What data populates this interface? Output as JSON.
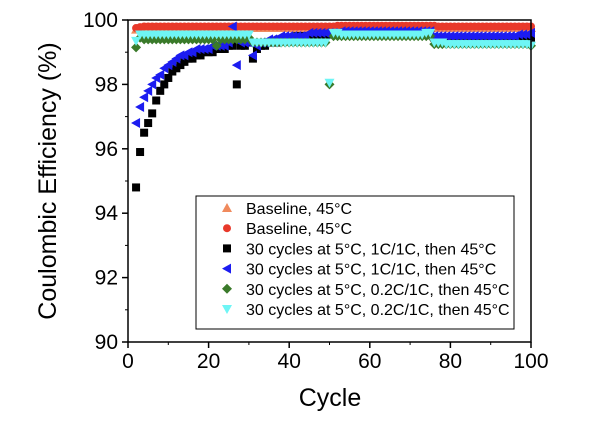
{
  "chart_data": {
    "type": "scatter",
    "xlabel": "Cycle",
    "ylabel": "Coulombic Efficiency (%)",
    "xlim": [
      0,
      100
    ],
    "ylim": [
      90,
      100
    ],
    "xticks": [
      "0",
      "20",
      "40",
      "60",
      "80",
      "100"
    ],
    "yticks": [
      "90",
      "92",
      "94",
      "96",
      "98",
      "100"
    ],
    "grid": false,
    "legend_position": "bottom-right",
    "series": [
      {
        "name": "Baseline, 45°C",
        "marker": "triangle-up",
        "color": "#f08a5d",
        "x_range": [
          2,
          100
        ],
        "y": [
          99.7,
          99.72,
          99.74,
          99.74,
          99.75,
          99.75,
          99.75,
          99.75,
          99.75,
          99.75,
          99.75,
          99.75,
          99.75,
          99.75,
          99.75,
          99.75,
          99.75,
          99.75,
          99.75,
          99.75,
          99.75,
          99.75,
          99.75,
          99.75,
          99.75,
          99.75,
          99.75,
          99.75,
          99.75,
          99.75,
          99.75,
          99.75,
          99.75,
          99.75,
          99.75,
          99.75,
          99.75,
          99.75,
          99.75,
          99.75,
          99.75,
          99.75,
          99.75,
          99.75,
          99.75,
          99.75,
          99.75,
          99.75,
          99.75,
          99.75,
          99.75,
          99.75,
          99.75,
          99.75,
          99.75,
          99.75,
          99.75,
          99.75,
          99.75,
          99.75,
          99.75,
          99.75,
          99.75,
          99.75,
          99.75,
          99.75,
          99.75,
          99.75,
          99.75,
          99.75,
          99.75,
          99.75,
          99.75,
          99.75,
          99.75,
          99.75,
          99.75,
          99.75,
          99.75,
          99.75,
          99.75,
          99.75,
          99.75,
          99.75,
          99.75,
          99.75,
          99.75,
          99.75,
          99.75,
          99.75,
          99.75,
          99.75,
          99.75,
          99.75,
          99.75,
          99.75,
          99.75,
          99.75,
          99.75
        ]
      },
      {
        "name": "Baseline, 45°C",
        "marker": "circle",
        "color": "#e8392a",
        "x_range": [
          2,
          100
        ],
        "y": [
          99.75,
          99.78,
          99.8,
          99.8,
          99.8,
          99.8,
          99.8,
          99.8,
          99.8,
          99.8,
          99.8,
          99.8,
          99.8,
          99.8,
          99.8,
          99.8,
          99.8,
          99.8,
          99.8,
          99.8,
          99.8,
          99.8,
          99.8,
          99.8,
          99.8,
          99.8,
          99.8,
          99.8,
          99.8,
          99.8,
          99.8,
          99.8,
          99.8,
          99.8,
          99.8,
          99.8,
          99.8,
          99.8,
          99.8,
          99.8,
          99.8,
          99.8,
          99.8,
          99.8,
          99.8,
          99.8,
          99.8,
          99.8,
          99.8,
          99.8,
          99.82,
          99.82,
          99.82,
          99.82,
          99.82,
          99.82,
          99.82,
          99.82,
          99.82,
          99.82,
          99.82,
          99.82,
          99.82,
          99.82,
          99.82,
          99.82,
          99.82,
          99.82,
          99.82,
          99.82,
          99.82,
          99.82,
          99.82,
          99.82,
          99.82,
          99.8,
          99.8,
          99.8,
          99.8,
          99.8,
          99.8,
          99.8,
          99.8,
          99.8,
          99.8,
          99.8,
          99.8,
          99.8,
          99.8,
          99.8,
          99.8,
          99.8,
          99.8,
          99.8,
          99.8,
          99.8,
          99.8,
          99.8,
          99.8
        ]
      },
      {
        "name": "30 cycles at 5°C, 1C/1C, then 45°C",
        "marker": "square",
        "color": "#000000",
        "x_range": [
          2,
          100
        ],
        "y": [
          94.8,
          95.9,
          96.5,
          96.8,
          97.1,
          97.5,
          97.8,
          98.0,
          98.2,
          98.4,
          98.5,
          98.6,
          98.7,
          98.8,
          98.8,
          98.9,
          98.9,
          99.0,
          99.0,
          99.0,
          99.1,
          99.1,
          99.1,
          99.2,
          99.2,
          98.0,
          99.2,
          99.2,
          99.3,
          98.8,
          99.1,
          99.2,
          99.2,
          99.3,
          99.3,
          99.3,
          99.4,
          99.4,
          99.4,
          99.4,
          99.5,
          99.5,
          99.5,
          99.5,
          99.5,
          99.5,
          99.5,
          99.5,
          99.55,
          99.55,
          99.55,
          99.55,
          99.6,
          99.6,
          99.6,
          99.6,
          99.6,
          99.6,
          99.6,
          99.6,
          99.6,
          99.6,
          99.6,
          99.6,
          99.6,
          99.6,
          99.6,
          99.6,
          99.6,
          99.6,
          99.6,
          99.6,
          99.6,
          99.6,
          99.45,
          99.45,
          99.45,
          99.45,
          99.45,
          99.45,
          99.45,
          99.45,
          99.45,
          99.45,
          99.45,
          99.45,
          99.45,
          99.45,
          99.45,
          99.45,
          99.45,
          99.45,
          99.45,
          99.45,
          99.45,
          99.45,
          99.45,
          99.45,
          99.45
        ]
      },
      {
        "name": "30 cycles at 5°C, 1C/1C, then 45°C",
        "marker": "triangle-left",
        "color": "#1c1cf0",
        "x_range": [
          2,
          100
        ],
        "y": [
          96.8,
          97.3,
          97.6,
          97.8,
          98.0,
          98.2,
          98.3,
          98.5,
          98.6,
          98.7,
          98.8,
          98.9,
          98.9,
          99.0,
          99.0,
          99.1,
          99.1,
          99.1,
          99.1,
          99.2,
          99.2,
          99.2,
          99.2,
          99.3,
          99.8,
          98.6,
          99.3,
          99.3,
          99.3,
          98.9,
          99.2,
          99.3,
          99.3,
          99.4,
          99.4,
          99.4,
          99.5,
          99.5,
          99.5,
          99.5,
          99.5,
          99.5,
          99.5,
          99.6,
          99.6,
          99.6,
          99.6,
          99.6,
          99.6,
          99.6,
          99.6,
          99.65,
          99.65,
          99.65,
          99.65,
          99.65,
          99.65,
          99.65,
          99.65,
          99.65,
          99.65,
          99.65,
          99.65,
          99.65,
          99.65,
          99.65,
          99.65,
          99.65,
          99.65,
          99.65,
          99.65,
          99.65,
          99.65,
          99.65,
          99.5,
          99.5,
          99.5,
          99.5,
          99.5,
          99.5,
          99.5,
          99.5,
          99.5,
          99.5,
          99.5,
          99.5,
          99.5,
          99.5,
          99.5,
          99.5,
          99.5,
          99.5,
          99.5,
          99.5,
          99.5,
          99.55,
          99.55,
          99.55,
          99.6
        ]
      },
      {
        "name": "30 cycles at 5°C, 0.2C/1C, then 45°C",
        "marker": "diamond",
        "color": "#3a7a2a",
        "x_range": [
          2,
          100
        ],
        "y": [
          99.15,
          99.45,
          99.4,
          99.4,
          99.4,
          99.4,
          99.4,
          99.4,
          99.4,
          99.4,
          99.4,
          99.4,
          99.4,
          99.4,
          99.4,
          99.4,
          99.4,
          99.4,
          99.4,
          99.4,
          99.2,
          99.4,
          99.4,
          99.4,
          99.4,
          99.4,
          99.4,
          99.4,
          99.45,
          99.3,
          99.3,
          99.3,
          99.3,
          99.3,
          99.3,
          99.3,
          99.3,
          99.3,
          99.3,
          99.3,
          99.3,
          99.3,
          99.3,
          99.3,
          99.3,
          99.3,
          99.3,
          99.3,
          98.0,
          99.5,
          99.5,
          99.5,
          99.5,
          99.5,
          99.5,
          99.5,
          99.5,
          99.5,
          99.5,
          99.5,
          99.5,
          99.5,
          99.5,
          99.5,
          99.5,
          99.5,
          99.5,
          99.5,
          99.5,
          99.5,
          99.5,
          99.5,
          99.5,
          99.5,
          99.25,
          99.25,
          99.25,
          99.25,
          99.25,
          99.25,
          99.25,
          99.25,
          99.25,
          99.25,
          99.25,
          99.25,
          99.25,
          99.25,
          99.25,
          99.25,
          99.25,
          99.25,
          99.25,
          99.25,
          99.25,
          99.25,
          99.25,
          99.25,
          99.2
        ]
      },
      {
        "name": "30 cycles at 5°C, 0.2C/1C, then 45°C",
        "marker": "triangle-down",
        "color": "#6ef5f5",
        "x_range": [
          2,
          100
        ],
        "y": [
          99.35,
          99.55,
          99.55,
          99.55,
          99.55,
          99.55,
          99.55,
          99.55,
          99.55,
          99.55,
          99.55,
          99.55,
          99.55,
          99.55,
          99.55,
          99.55,
          99.55,
          99.55,
          99.55,
          99.55,
          99.55,
          99.55,
          99.55,
          99.55,
          99.55,
          99.55,
          99.55,
          99.55,
          99.55,
          99.3,
          99.3,
          99.3,
          99.3,
          99.3,
          99.3,
          99.3,
          99.3,
          99.3,
          99.3,
          99.3,
          99.3,
          99.3,
          99.3,
          99.3,
          99.3,
          99.3,
          99.3,
          99.3,
          98.05,
          99.6,
          99.6,
          99.55,
          99.55,
          99.55,
          99.55,
          99.55,
          99.55,
          99.55,
          99.55,
          99.55,
          99.55,
          99.55,
          99.55,
          99.55,
          99.55,
          99.55,
          99.55,
          99.55,
          99.55,
          99.55,
          99.55,
          99.55,
          99.6,
          99.6,
          99.3,
          99.3,
          99.3,
          99.25,
          99.25,
          99.25,
          99.25,
          99.25,
          99.25,
          99.25,
          99.25,
          99.25,
          99.25,
          99.25,
          99.25,
          99.25,
          99.25,
          99.25,
          99.25,
          99.25,
          99.25,
          99.25,
          99.25,
          99.25,
          99.2
        ]
      }
    ]
  }
}
